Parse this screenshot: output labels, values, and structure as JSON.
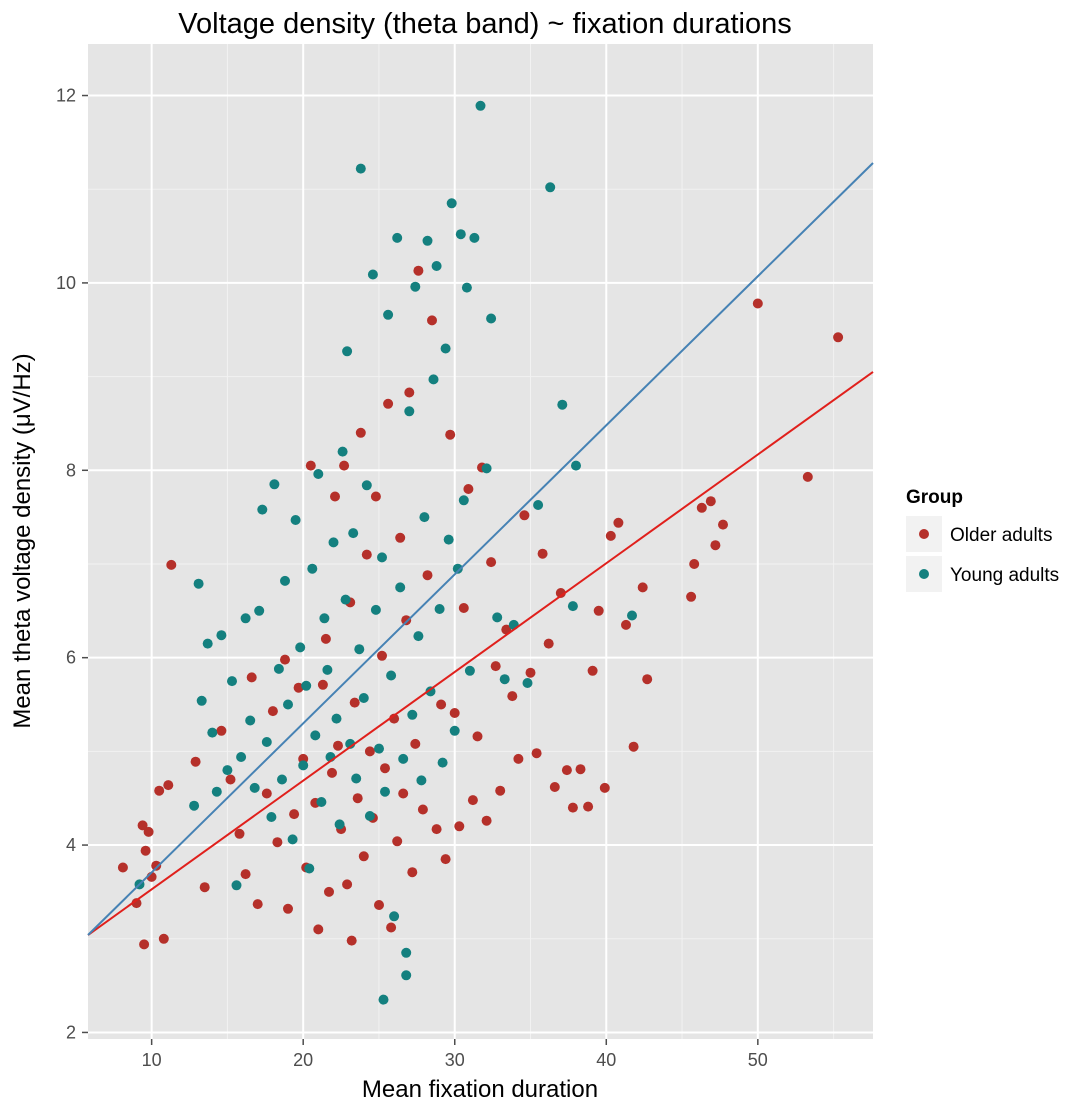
{
  "chart_data": {
    "type": "scatter",
    "title": "Voltage density (theta band) ~ fixation durations",
    "xlabel": "Mean fixation duration",
    "ylabel": "Mean theta voltage density (μV/Hz)",
    "xlim": [
      5.8,
      57.6
    ],
    "ylim": [
      1.93,
      12.55
    ],
    "x_ticks": [
      10,
      20,
      30,
      40,
      50
    ],
    "y_ticks": [
      2,
      4,
      6,
      8,
      10,
      12
    ],
    "grid": true,
    "legend": {
      "title": "Group",
      "placement": "right"
    },
    "series": [
      {
        "name": "Older adults",
        "color": "#b5302a",
        "fit": {
          "x": [
            5.8,
            57.6
          ],
          "y": [
            3.04,
            9.05
          ],
          "color": "#e0201c"
        },
        "points": [
          [
            8.1,
            3.76
          ],
          [
            9.0,
            3.38
          ],
          [
            9.4,
            4.21
          ],
          [
            9.5,
            2.94
          ],
          [
            9.6,
            3.94
          ],
          [
            9.8,
            4.14
          ],
          [
            10.0,
            3.66
          ],
          [
            10.3,
            3.78
          ],
          [
            10.5,
            4.58
          ],
          [
            10.8,
            3.0
          ],
          [
            11.1,
            4.64
          ],
          [
            11.3,
            6.99
          ],
          [
            12.9,
            4.89
          ],
          [
            13.5,
            3.55
          ],
          [
            14.6,
            5.22
          ],
          [
            15.2,
            4.7
          ],
          [
            15.8,
            4.12
          ],
          [
            16.2,
            3.69
          ],
          [
            16.6,
            5.79
          ],
          [
            17.0,
            3.37
          ],
          [
            17.6,
            4.55
          ],
          [
            18.0,
            5.43
          ],
          [
            18.3,
            4.03
          ],
          [
            18.8,
            5.98
          ],
          [
            19.0,
            3.32
          ],
          [
            19.4,
            4.33
          ],
          [
            19.7,
            5.68
          ],
          [
            20.0,
            4.92
          ],
          [
            20.2,
            3.76
          ],
          [
            20.5,
            8.05
          ],
          [
            20.8,
            4.45
          ],
          [
            21.0,
            3.1
          ],
          [
            21.3,
            5.71
          ],
          [
            21.5,
            6.2
          ],
          [
            21.7,
            3.5
          ],
          [
            21.9,
            4.77
          ],
          [
            22.1,
            7.72
          ],
          [
            22.3,
            5.06
          ],
          [
            22.5,
            4.17
          ],
          [
            22.7,
            8.05
          ],
          [
            22.9,
            3.58
          ],
          [
            23.1,
            6.59
          ],
          [
            23.2,
            2.98
          ],
          [
            23.4,
            5.52
          ],
          [
            23.6,
            4.5
          ],
          [
            23.8,
            8.4
          ],
          [
            24.0,
            3.88
          ],
          [
            24.2,
            7.1
          ],
          [
            24.4,
            5.0
          ],
          [
            24.6,
            4.29
          ],
          [
            24.8,
            7.72
          ],
          [
            25.0,
            3.36
          ],
          [
            25.2,
            6.02
          ],
          [
            25.4,
            4.82
          ],
          [
            25.6,
            8.71
          ],
          [
            25.8,
            3.12
          ],
          [
            26.0,
            5.35
          ],
          [
            26.2,
            4.04
          ],
          [
            26.4,
            7.28
          ],
          [
            26.6,
            4.55
          ],
          [
            26.8,
            6.4
          ],
          [
            27.0,
            8.83
          ],
          [
            27.2,
            3.71
          ],
          [
            27.4,
            5.08
          ],
          [
            27.6,
            10.13
          ],
          [
            27.9,
            4.38
          ],
          [
            28.2,
            6.88
          ],
          [
            28.5,
            9.6
          ],
          [
            28.8,
            4.17
          ],
          [
            29.1,
            5.5
          ],
          [
            29.4,
            3.85
          ],
          [
            29.7,
            8.38
          ],
          [
            30.0,
            5.41
          ],
          [
            30.3,
            4.2
          ],
          [
            30.6,
            6.53
          ],
          [
            30.9,
            7.8
          ],
          [
            31.2,
            4.48
          ],
          [
            31.5,
            5.16
          ],
          [
            31.8,
            8.03
          ],
          [
            32.1,
            4.26
          ],
          [
            32.4,
            7.02
          ],
          [
            32.7,
            5.91
          ],
          [
            33.0,
            4.58
          ],
          [
            33.4,
            6.3
          ],
          [
            33.8,
            5.59
          ],
          [
            34.2,
            4.92
          ],
          [
            34.6,
            7.52
          ],
          [
            35.0,
            5.84
          ],
          [
            35.4,
            4.98
          ],
          [
            35.8,
            7.11
          ],
          [
            36.2,
            6.15
          ],
          [
            36.6,
            4.62
          ],
          [
            37.0,
            6.69
          ],
          [
            37.4,
            4.8
          ],
          [
            37.8,
            4.4
          ],
          [
            38.3,
            4.81
          ],
          [
            38.8,
            4.41
          ],
          [
            39.1,
            5.86
          ],
          [
            39.5,
            6.5
          ],
          [
            39.9,
            4.61
          ],
          [
            40.3,
            7.3
          ],
          [
            40.8,
            7.44
          ],
          [
            41.3,
            6.35
          ],
          [
            41.8,
            5.05
          ],
          [
            42.4,
            6.75
          ],
          [
            42.7,
            5.77
          ],
          [
            45.6,
            6.65
          ],
          [
            45.8,
            7.0
          ],
          [
            46.3,
            7.6
          ],
          [
            46.9,
            7.67
          ],
          [
            47.2,
            7.2
          ],
          [
            47.7,
            7.42
          ],
          [
            50.0,
            9.78
          ],
          [
            53.3,
            7.93
          ],
          [
            55.3,
            9.42
          ]
        ]
      },
      {
        "name": "Young adults",
        "color": "#14807f",
        "fit": {
          "x": [
            5.8,
            57.6
          ],
          "y": [
            3.04,
            11.28
          ],
          "color": "#4682b4"
        },
        "points": [
          [
            9.2,
            3.58
          ],
          [
            12.8,
            4.42
          ],
          [
            13.1,
            6.79
          ],
          [
            13.3,
            5.54
          ],
          [
            13.7,
            6.15
          ],
          [
            14.0,
            5.2
          ],
          [
            14.3,
            4.57
          ],
          [
            14.6,
            6.24
          ],
          [
            15.0,
            4.8
          ],
          [
            15.3,
            5.75
          ],
          [
            15.6,
            3.57
          ],
          [
            15.9,
            4.94
          ],
          [
            16.2,
            6.42
          ],
          [
            16.5,
            5.33
          ],
          [
            16.8,
            4.61
          ],
          [
            17.1,
            6.5
          ],
          [
            17.3,
            7.58
          ],
          [
            17.6,
            5.1
          ],
          [
            17.9,
            4.3
          ],
          [
            18.1,
            7.85
          ],
          [
            18.4,
            5.88
          ],
          [
            18.6,
            4.7
          ],
          [
            18.8,
            6.82
          ],
          [
            19.0,
            5.5
          ],
          [
            19.3,
            4.06
          ],
          [
            19.5,
            7.47
          ],
          [
            19.8,
            6.11
          ],
          [
            20.0,
            4.85
          ],
          [
            20.2,
            5.7
          ],
          [
            20.4,
            3.75
          ],
          [
            20.6,
            6.95
          ],
          [
            20.8,
            5.17
          ],
          [
            21.0,
            7.96
          ],
          [
            21.2,
            4.46
          ],
          [
            21.4,
            6.42
          ],
          [
            21.6,
            5.87
          ],
          [
            21.8,
            4.94
          ],
          [
            22.0,
            7.23
          ],
          [
            22.2,
            5.35
          ],
          [
            22.4,
            4.22
          ],
          [
            22.6,
            8.2
          ],
          [
            22.8,
            6.62
          ],
          [
            22.9,
            9.27
          ],
          [
            23.1,
            5.08
          ],
          [
            23.3,
            7.33
          ],
          [
            23.5,
            4.71
          ],
          [
            23.7,
            6.09
          ],
          [
            23.8,
            11.22
          ],
          [
            24.0,
            5.57
          ],
          [
            24.2,
            7.84
          ],
          [
            24.4,
            4.31
          ],
          [
            24.6,
            10.09
          ],
          [
            24.8,
            6.51
          ],
          [
            25.0,
            5.03
          ],
          [
            25.2,
            7.07
          ],
          [
            25.4,
            4.57
          ],
          [
            25.6,
            9.66
          ],
          [
            25.8,
            5.81
          ],
          [
            26.0,
            3.24
          ],
          [
            26.2,
            10.48
          ],
          [
            26.4,
            6.75
          ],
          [
            26.6,
            4.92
          ],
          [
            26.8,
            2.61
          ],
          [
            27.0,
            8.63
          ],
          [
            27.2,
            5.39
          ],
          [
            27.4,
            9.96
          ],
          [
            27.6,
            6.23
          ],
          [
            27.8,
            4.69
          ],
          [
            28.0,
            7.5
          ],
          [
            28.2,
            10.45
          ],
          [
            28.4,
            5.64
          ],
          [
            28.6,
            8.97
          ],
          [
            28.8,
            10.18
          ],
          [
            29.0,
            6.52
          ],
          [
            29.2,
            4.88
          ],
          [
            29.4,
            9.3
          ],
          [
            29.6,
            7.26
          ],
          [
            29.8,
            10.85
          ],
          [
            30.0,
            5.22
          ],
          [
            30.2,
            6.95
          ],
          [
            30.4,
            10.52
          ],
          [
            30.6,
            7.68
          ],
          [
            30.8,
            9.95
          ],
          [
            31.0,
            5.86
          ],
          [
            31.3,
            10.48
          ],
          [
            31.7,
            11.89
          ],
          [
            32.1,
            8.02
          ],
          [
            32.4,
            9.62
          ],
          [
            32.8,
            6.43
          ],
          [
            33.3,
            5.77
          ],
          [
            33.9,
            6.35
          ],
          [
            34.8,
            5.73
          ],
          [
            35.5,
            7.63
          ],
          [
            36.3,
            11.02
          ],
          [
            37.1,
            8.7
          ],
          [
            37.8,
            6.55
          ],
          [
            38.0,
            8.05
          ],
          [
            41.7,
            6.45
          ],
          [
            25.3,
            2.35
          ],
          [
            26.8,
            2.85
          ]
        ]
      }
    ]
  }
}
